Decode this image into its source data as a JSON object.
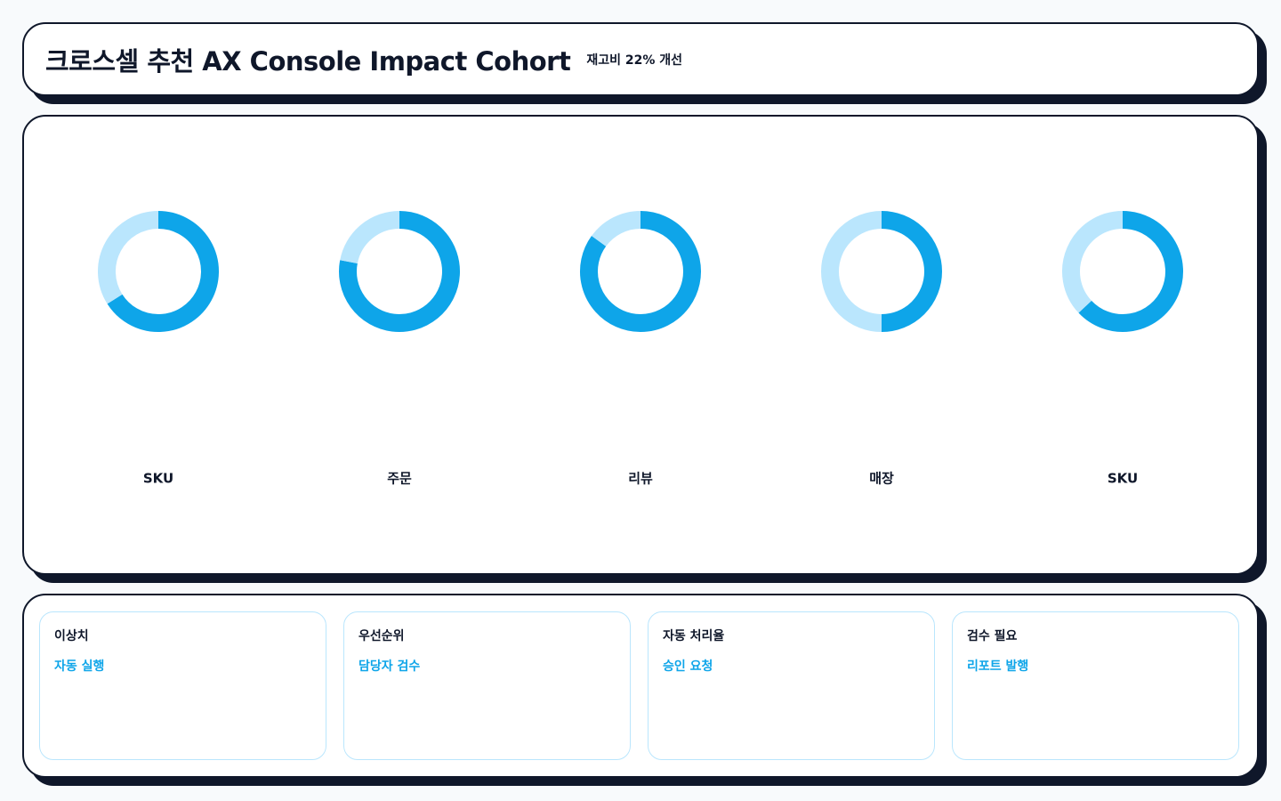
{
  "header": {
    "title": "크로스셀 추천 AX Console Impact Cohort",
    "subtitle": "재고비 22% 개선"
  },
  "chart_data": [
    {
      "type": "donut",
      "label": "SKU",
      "values": [
        66,
        34
      ],
      "colors": [
        "#0ea5e9",
        "#bae6fd"
      ]
    },
    {
      "type": "donut",
      "label": "주문",
      "values": [
        78,
        22
      ],
      "colors": [
        "#0ea5e9",
        "#bae6fd"
      ]
    },
    {
      "type": "donut",
      "label": "리뷰",
      "values": [
        85,
        15
      ],
      "colors": [
        "#0ea5e9",
        "#bae6fd"
      ]
    },
    {
      "type": "donut",
      "label": "매장",
      "values": [
        50,
        50
      ],
      "colors": [
        "#0ea5e9",
        "#bae6fd"
      ]
    },
    {
      "type": "donut",
      "label": "SKU",
      "values": [
        63,
        37
      ],
      "colors": [
        "#0ea5e9",
        "#bae6fd"
      ]
    }
  ],
  "cards": [
    {
      "title": "이상치",
      "action": "자동 실행"
    },
    {
      "title": "우선순위",
      "action": "담당자 검수"
    },
    {
      "title": "자동 처리율",
      "action": "승인 요청"
    },
    {
      "title": "검수 필요",
      "action": "리포트 발행"
    }
  ]
}
